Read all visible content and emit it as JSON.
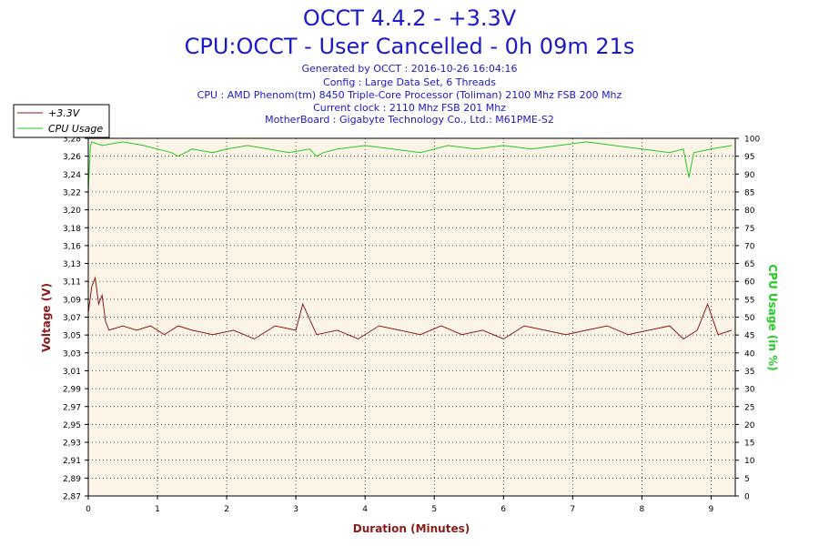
{
  "header": {
    "title_line1": "OCCT 4.4.2 - +3.3V",
    "title_line2": "CPU:OCCT - User Cancelled - 0h 09m 21s",
    "info_lines": [
      "Generated by OCCT : 2016-10-26 16:04:16",
      "Config : Large Data Set, 6 Threads",
      "CPU : AMD Phenom(tm) 8450 Triple-Core Processor (Toliman) 2100 Mhz FSB 200 Mhz",
      "Current clock : 2110 Mhz FSB 201 Mhz",
      "MotherBoard : Gigabyte Technology Co., Ltd.: M61PME-S2"
    ]
  },
  "colors": {
    "title": "#1a1ac8",
    "voltage": "#8b1a1a",
    "cpu": "#22cc22",
    "plot_bg": "#fcf4e6"
  },
  "chart_data": {
    "type": "line",
    "xlabel": "Duration (Minutes)",
    "ylabel": "Voltage (V)",
    "y2label": "CPU Usage (in %)",
    "xlim": [
      0,
      9.35
    ],
    "ylim": [
      2.87,
      3.28
    ],
    "y2lim": [
      0,
      100
    ],
    "x_ticks": [
      "0",
      "1",
      "2",
      "3",
      "4",
      "5",
      "6",
      "7",
      "8",
      "9"
    ],
    "y_ticks": [
      "2,87",
      "2,89",
      "2,91",
      "2,93",
      "2,95",
      "2,97",
      "2,99",
      "3,01",
      "3,03",
      "3,05",
      "3,07",
      "3,09",
      "3,11",
      "3,13",
      "3,16",
      "3,18",
      "3,20",
      "3,22",
      "3,24",
      "3,26",
      "3,28"
    ],
    "y2_ticks": [
      "0",
      "5",
      "10",
      "15",
      "20",
      "25",
      "30",
      "35",
      "40",
      "45",
      "50",
      "55",
      "60",
      "65",
      "70",
      "75",
      "80",
      "85",
      "90",
      "95",
      "100"
    ],
    "grid": true,
    "legend_position": "top-left",
    "series": [
      {
        "name": "+3.3V",
        "axis": "left",
        "x": [
          0,
          0.05,
          0.1,
          0.15,
          0.2,
          0.25,
          0.3,
          0.5,
          0.7,
          0.9,
          1.1,
          1.3,
          1.5,
          1.8,
          2.1,
          2.4,
          2.7,
          3.0,
          3.1,
          3.3,
          3.6,
          3.9,
          4.2,
          4.5,
          4.8,
          5.1,
          5.4,
          5.7,
          6.0,
          6.3,
          6.6,
          6.9,
          7.2,
          7.5,
          7.8,
          8.1,
          8.4,
          8.6,
          8.8,
          8.95,
          9.1,
          9.3
        ],
        "y": [
          3.08,
          3.11,
          3.12,
          3.09,
          3.1,
          3.07,
          3.06,
          3.065,
          3.06,
          3.065,
          3.055,
          3.065,
          3.06,
          3.055,
          3.06,
          3.05,
          3.065,
          3.06,
          3.09,
          3.055,
          3.06,
          3.05,
          3.065,
          3.06,
          3.055,
          3.065,
          3.055,
          3.06,
          3.05,
          3.065,
          3.06,
          3.055,
          3.06,
          3.065,
          3.055,
          3.06,
          3.065,
          3.05,
          3.06,
          3.09,
          3.055,
          3.06
        ]
      },
      {
        "name": "CPU Usage",
        "axis": "right",
        "x": [
          0,
          0.03,
          0.05,
          0.2,
          0.5,
          0.8,
          1.0,
          1.2,
          1.3,
          1.5,
          1.8,
          2.0,
          2.3,
          2.6,
          2.9,
          3.2,
          3.3,
          3.4,
          3.6,
          4.0,
          4.4,
          4.8,
          5.2,
          5.6,
          6.0,
          6.4,
          6.8,
          7.2,
          7.6,
          8.0,
          8.4,
          8.6,
          8.68,
          8.75,
          9.0,
          9.3
        ],
        "y": [
          85,
          98,
          99,
          98,
          99,
          98,
          97,
          96,
          95,
          97,
          96,
          97,
          98,
          97,
          96,
          97,
          95,
          96,
          97,
          98,
          97,
          96,
          98,
          97,
          98,
          97,
          98,
          99,
          98,
          97,
          96,
          97,
          89,
          96,
          97,
          98
        ]
      }
    ]
  }
}
